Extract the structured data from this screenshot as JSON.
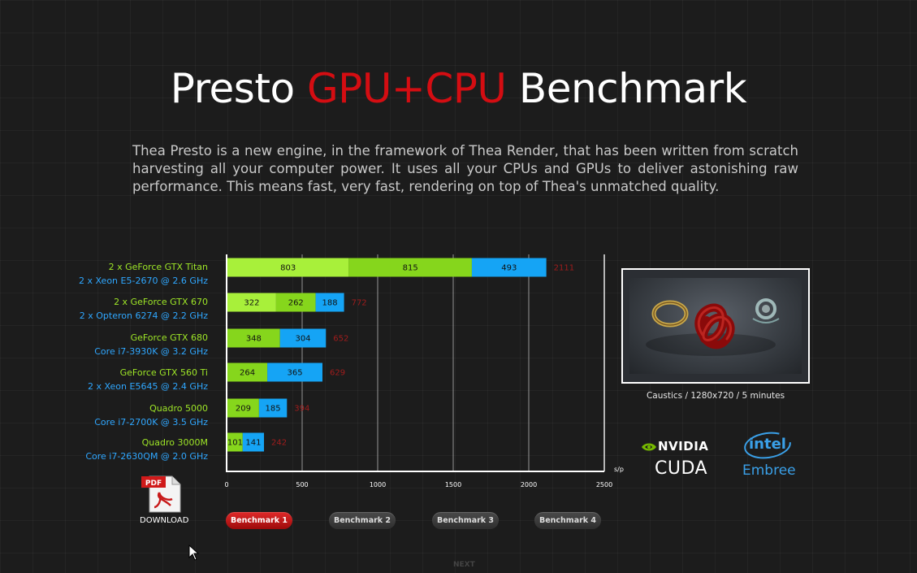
{
  "page": {
    "title_part1": "Presto ",
    "title_part2": "GPU+CPU",
    "title_part3": " Benchmark",
    "intro": "Thea Presto is a new engine, in the framework of Thea Render, that has been written from scratch harvesting all your computer power. It uses all your CPUs and GPUs to deliver astonishing raw performance. This means fast, very fast, rendering on top of Thea's unmatched quality."
  },
  "rows": [
    {
      "gpu": "2 x GeForce GTX Titan",
      "cpu": "2 x Xeon E5-2670 @ 2.6 GHz"
    },
    {
      "gpu": "2 x GeForce GTX 670",
      "cpu": "2 x Opteron 6274 @ 2.2 GHz"
    },
    {
      "gpu": "GeForce GTX 680",
      "cpu": "Core i7-3930K @ 3.2 GHz"
    },
    {
      "gpu": "GeForce GTX 560 Ti",
      "cpu": "2 x Xeon E5645 @ 2.4 GHz"
    },
    {
      "gpu": "Quadro 5000",
      "cpu": "Core i7-2700K @ 3.5 GHz"
    },
    {
      "gpu": "Quadro 3000M",
      "cpu": "Core i7-2630QM @ 2.0 GHz"
    }
  ],
  "chart_data": {
    "type": "bar",
    "orientation": "horizontal",
    "stacked": true,
    "categories": [
      "2 x GeForce GTX Titan / 2 x Xeon E5-2670 @ 2.6 GHz",
      "2 x GeForce GTX 670 / 2 x Opteron 6274 @ 2.2 GHz",
      "GeForce GTX 680 / Core i7-3930K @ 3.2 GHz",
      "GeForce GTX 560 Ti / 2 x Xeon E5645 @ 2.4 GHz",
      "Quadro 5000 / Core i7-2700K @ 3.5 GHz",
      "Quadro 3000M / Core i7-2630QM @ 2.0 GHz"
    ],
    "segments": [
      [
        {
          "value": 803,
          "color": "#a8f03a"
        },
        {
          "value": 815,
          "color": "#86d61c"
        },
        {
          "value": 493,
          "color": "#15a4f5"
        }
      ],
      [
        {
          "value": 322,
          "color": "#a8f03a"
        },
        {
          "value": 262,
          "color": "#86d61c"
        },
        {
          "value": 188,
          "color": "#15a4f5"
        }
      ],
      [
        {
          "value": 348,
          "color": "#86d61c"
        },
        {
          "value": 304,
          "color": "#15a4f5"
        }
      ],
      [
        {
          "value": 264,
          "color": "#86d61c"
        },
        {
          "value": 365,
          "color": "#15a4f5"
        }
      ],
      [
        {
          "value": 209,
          "color": "#86d61c"
        },
        {
          "value": 185,
          "color": "#15a4f5"
        }
      ],
      [
        {
          "value": 101,
          "color": "#86d61c"
        },
        {
          "value": 141,
          "color": "#15a4f5"
        }
      ]
    ],
    "totals": [
      "2111",
      "772",
      "652",
      "629",
      "394",
      "242"
    ],
    "xticks": [
      0,
      500,
      1000,
      1500,
      2000,
      2500
    ],
    "xlim": [
      0,
      2500
    ],
    "xlabel": "s/p",
    "grid": true
  },
  "render": {
    "caption": "Caustics / 1280x720 / 5 minutes"
  },
  "logos": {
    "nvidia": "NVIDIA",
    "cuda": "CUDA",
    "intel": "intel",
    "embree": "Embree"
  },
  "download": {
    "badge": "PDF",
    "label": "DOWNLOAD"
  },
  "buttons": [
    "Benchmark 1",
    "Benchmark 2",
    "Benchmark 3",
    "Benchmark 4"
  ],
  "next_label": "NEXT"
}
